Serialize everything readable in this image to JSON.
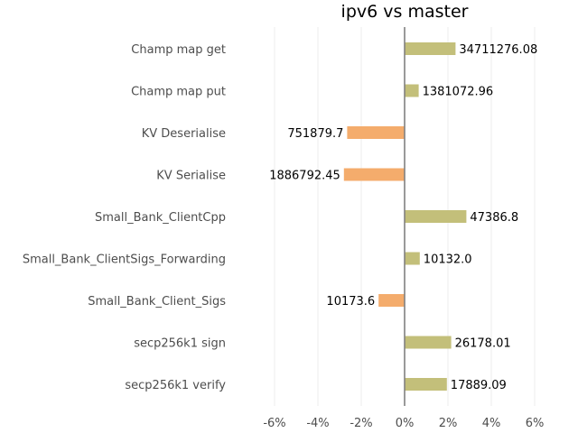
{
  "chart_data": {
    "type": "bar",
    "orientation": "horizontal",
    "title": "ipv6 vs master",
    "xlabel": "",
    "ylabel": "",
    "xlim": [
      -7.5,
      7.5
    ],
    "x_ticks": [
      -6,
      -4,
      -2,
      0,
      2,
      4,
      6
    ],
    "x_tick_labels": [
      "-6%",
      "-4%",
      "-2%",
      "0%",
      "2%",
      "4%",
      "6%"
    ],
    "grid": "vertical-only",
    "categories": [
      "Champ map get",
      "Champ map put",
      "KV Deserialise",
      "KV Serialise",
      "Small_Bank_ClientCpp",
      "Small_Bank_ClientSigs_Forwarding",
      "Small_Bank_Client_Sigs",
      "secp256k1 sign",
      "secp256k1 verify"
    ],
    "values_percent": [
      2.35,
      0.65,
      -2.65,
      -2.8,
      2.85,
      0.7,
      -1.2,
      2.15,
      1.95
    ],
    "data_labels": [
      "34711276.08",
      "1381072.96",
      "751879.7",
      "1886792.45",
      "47386.8",
      "10132.0",
      "10173.6",
      "26178.01",
      "17889.09"
    ],
    "colors": {
      "positive": "#c3bf7a",
      "negative": "#f4ac6c",
      "zero_line": "#808080",
      "grid": "#ececec"
    }
  }
}
